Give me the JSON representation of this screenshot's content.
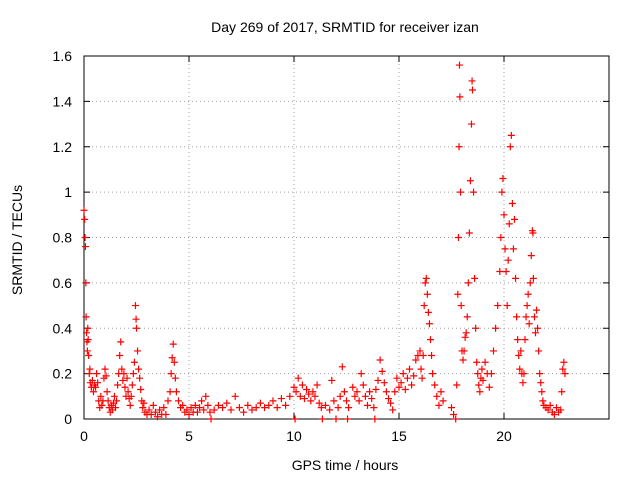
{
  "chart_data": {
    "type": "scatter",
    "title": "Day 269 of 2017, SRMTID for receiver izan",
    "xlabel": "GPS time / hours",
    "ylabel": "SRMTID / TECUs",
    "xlim": [
      0,
      25
    ],
    "ylim": [
      0,
      1.6
    ],
    "x_ticks": [
      0,
      5,
      10,
      15,
      20
    ],
    "x_tick_labels": [
      "0",
      "5",
      "10",
      "15",
      "20"
    ],
    "y_ticks": [
      0,
      0.2,
      0.4,
      0.6,
      0.8,
      1.0,
      1.2,
      1.4,
      1.6
    ],
    "y_tick_labels": [
      "0",
      "0.2",
      "0.4",
      "0.6",
      "0.8",
      "1",
      "1.2",
      "1.4",
      "1.6"
    ],
    "grid": true,
    "marker": "+",
    "color": "#ff0000",
    "series": [
      {
        "name": "SRMTID",
        "points": [
          [
            0.0,
            0.92
          ],
          [
            0.03,
            0.88
          ],
          [
            0.05,
            0.8
          ],
          [
            0.07,
            0.76
          ],
          [
            0.09,
            0.6
          ],
          [
            0.1,
            0.45
          ],
          [
            0.12,
            0.38
          ],
          [
            0.14,
            0.34
          ],
          [
            0.16,
            0.3
          ],
          [
            0.18,
            0.4
          ],
          [
            0.2,
            0.35
          ],
          [
            0.22,
            0.28
          ],
          [
            0.25,
            0.2
          ],
          [
            0.28,
            0.22
          ],
          [
            0.3,
            0.16
          ],
          [
            0.35,
            0.14
          ],
          [
            0.4,
            0.17
          ],
          [
            0.45,
            0.12
          ],
          [
            0.5,
            0.15
          ],
          [
            0.55,
            0.14
          ],
          [
            0.6,
            0.2
          ],
          [
            0.65,
            0.16
          ],
          [
            0.7,
            0.08
          ],
          [
            0.75,
            0.05
          ],
          [
            0.8,
            0.1
          ],
          [
            0.85,
            0.06
          ],
          [
            0.9,
            0.08
          ],
          [
            0.95,
            0.18
          ],
          [
            1.0,
            0.22
          ],
          [
            1.05,
            0.19
          ],
          [
            1.1,
            0.12
          ],
          [
            1.15,
            0.08
          ],
          [
            1.2,
            0.05
          ],
          [
            1.25,
            0.03
          ],
          [
            1.3,
            0.06
          ],
          [
            1.35,
            0.04
          ],
          [
            1.4,
            0.07
          ],
          [
            1.45,
            0.1
          ],
          [
            1.5,
            0.05
          ],
          [
            1.55,
            0.08
          ],
          [
            1.6,
            0.15
          ],
          [
            1.65,
            0.2
          ],
          [
            1.7,
            0.28
          ],
          [
            1.75,
            0.34
          ],
          [
            1.8,
            0.22
          ],
          [
            1.85,
            0.17
          ],
          [
            1.9,
            0.2
          ],
          [
            1.95,
            0.14
          ],
          [
            2.0,
            0.1
          ],
          [
            2.05,
            0.18
          ],
          [
            2.1,
            0.12
          ],
          [
            2.15,
            0.09
          ],
          [
            2.2,
            0.06
          ],
          [
            2.25,
            0.1
          ],
          [
            2.3,
            0.15
          ],
          [
            2.35,
            0.2
          ],
          [
            2.4,
            0.25
          ],
          [
            2.45,
            0.5
          ],
          [
            2.48,
            0.44
          ],
          [
            2.5,
            0.4
          ],
          [
            2.55,
            0.3
          ],
          [
            2.6,
            0.22
          ],
          [
            2.65,
            0.18
          ],
          [
            2.7,
            0.13
          ],
          [
            2.75,
            0.08
          ],
          [
            2.8,
            0.05
          ],
          [
            2.85,
            0.07
          ],
          [
            2.9,
            0.03
          ],
          [
            3.0,
            0.02
          ],
          [
            3.1,
            0.04
          ],
          [
            3.2,
            0.02
          ],
          [
            3.3,
            0.06
          ],
          [
            3.4,
            0.03
          ],
          [
            3.5,
            0.01
          ],
          [
            3.6,
            0.04
          ],
          [
            3.7,
            0.02
          ],
          [
            3.8,
            0.05
          ],
          [
            3.9,
            0.02
          ],
          [
            4.0,
            0.08
          ],
          [
            4.1,
            0.12
          ],
          [
            4.15,
            0.2
          ],
          [
            4.2,
            0.27
          ],
          [
            4.25,
            0.33
          ],
          [
            4.3,
            0.25
          ],
          [
            4.35,
            0.18
          ],
          [
            4.4,
            0.12
          ],
          [
            4.5,
            0.08
          ],
          [
            4.6,
            0.05
          ],
          [
            4.7,
            0.06
          ],
          [
            4.8,
            0.03
          ],
          [
            4.9,
            0.04
          ],
          [
            5.0,
            0.02
          ],
          [
            5.1,
            0.05
          ],
          [
            5.2,
            0.03
          ],
          [
            5.3,
            0.06
          ],
          [
            5.4,
            0.03
          ],
          [
            5.5,
            0.05
          ],
          [
            5.6,
            0.08
          ],
          [
            5.7,
            0.04
          ],
          [
            5.8,
            0.1
          ],
          [
            5.9,
            0.06
          ],
          [
            6.0,
            0.03
          ],
          [
            6.05,
            0.0
          ],
          [
            6.2,
            0.04
          ],
          [
            6.4,
            0.06
          ],
          [
            6.6,
            0.05
          ],
          [
            6.8,
            0.07
          ],
          [
            7.0,
            0.04
          ],
          [
            7.2,
            0.1
          ],
          [
            7.4,
            0.05
          ],
          [
            7.6,
            0.03
          ],
          [
            7.8,
            0.06
          ],
          [
            8.0,
            0.04
          ],
          [
            8.2,
            0.05
          ],
          [
            8.4,
            0.07
          ],
          [
            8.6,
            0.05
          ],
          [
            8.8,
            0.06
          ],
          [
            9.0,
            0.08
          ],
          [
            9.2,
            0.05
          ],
          [
            9.4,
            0.09
          ],
          [
            9.6,
            0.06
          ],
          [
            9.8,
            0.1
          ],
          [
            10.0,
            0.14
          ],
          [
            10.05,
            0.0
          ],
          [
            10.1,
            0.12
          ],
          [
            10.2,
            0.18
          ],
          [
            10.3,
            0.1
          ],
          [
            10.4,
            0.15
          ],
          [
            10.5,
            0.09
          ],
          [
            10.6,
            0.13
          ],
          [
            10.7,
            0.11
          ],
          [
            10.8,
            0.08
          ],
          [
            10.9,
            0.12
          ],
          [
            11.0,
            0.1
          ],
          [
            11.1,
            0.15
          ],
          [
            11.2,
            0.07
          ],
          [
            11.3,
            0.05
          ],
          [
            11.35,
            0.0
          ],
          [
            11.5,
            0.06
          ],
          [
            11.7,
            0.04
          ],
          [
            11.8,
            0.17
          ],
          [
            11.9,
            0.08
          ],
          [
            12.0,
            0.0
          ],
          [
            12.1,
            0.05
          ],
          [
            12.2,
            0.1
          ],
          [
            12.3,
            0.23
          ],
          [
            12.4,
            0.12
          ],
          [
            12.5,
            0.08
          ],
          [
            12.55,
            0.0
          ],
          [
            12.6,
            0.05
          ],
          [
            12.8,
            0.14
          ],
          [
            12.9,
            0.1
          ],
          [
            13.0,
            0.12
          ],
          [
            13.1,
            0.08
          ],
          [
            13.2,
            0.2
          ],
          [
            13.3,
            0.15
          ],
          [
            13.4,
            0.1
          ],
          [
            13.5,
            0.06
          ],
          [
            13.6,
            0.12
          ],
          [
            13.7,
            0.09
          ],
          [
            13.8,
            0.05
          ],
          [
            13.85,
            0.0
          ],
          [
            13.9,
            0.13
          ],
          [
            14.0,
            0.17
          ],
          [
            14.1,
            0.26
          ],
          [
            14.2,
            0.21
          ],
          [
            14.3,
            0.16
          ],
          [
            14.4,
            0.12
          ],
          [
            14.5,
            0.09
          ],
          [
            14.6,
            0.07
          ],
          [
            14.7,
            0.04
          ],
          [
            14.8,
            0.12
          ],
          [
            14.9,
            0.18
          ],
          [
            15.0,
            0.14
          ],
          [
            15.1,
            0.16
          ],
          [
            15.2,
            0.2
          ],
          [
            15.3,
            0.13
          ],
          [
            15.4,
            0.18
          ],
          [
            15.5,
            0.22
          ],
          [
            15.6,
            0.15
          ],
          [
            15.7,
            0.19
          ],
          [
            15.8,
            0.26
          ],
          [
            15.9,
            0.28
          ],
          [
            16.0,
            0.3
          ],
          [
            16.05,
            0.22
          ],
          [
            16.1,
            0.18
          ],
          [
            16.15,
            0.28
          ],
          [
            16.2,
            0.5
          ],
          [
            16.25,
            0.6
          ],
          [
            16.3,
            0.62
          ],
          [
            16.35,
            0.55
          ],
          [
            16.4,
            0.47
          ],
          [
            16.45,
            0.42
          ],
          [
            16.5,
            0.35
          ],
          [
            16.55,
            0.28
          ],
          [
            16.6,
            0.2
          ],
          [
            16.7,
            0.15
          ],
          [
            16.8,
            0.1
          ],
          [
            16.9,
            0.06
          ],
          [
            17.0,
            0.12
          ],
          [
            17.1,
            0.08
          ],
          [
            17.5,
            0.05
          ],
          [
            17.6,
            0.02
          ],
          [
            17.7,
            0.0
          ],
          [
            17.75,
            0.15
          ],
          [
            17.8,
            0.55
          ],
          [
            17.83,
            0.8
          ],
          [
            17.86,
            1.2
          ],
          [
            17.88,
            1.56
          ],
          [
            17.9,
            1.42
          ],
          [
            17.93,
            1.0
          ],
          [
            17.96,
            0.5
          ],
          [
            18.0,
            0.3
          ],
          [
            18.05,
            0.26
          ],
          [
            18.1,
            0.3
          ],
          [
            18.15,
            0.36
          ],
          [
            18.2,
            0.38
          ],
          [
            18.25,
            0.45
          ],
          [
            18.3,
            0.6
          ],
          [
            18.35,
            0.82
          ],
          [
            18.4,
            1.05
          ],
          [
            18.45,
            1.3
          ],
          [
            18.48,
            1.49
          ],
          [
            18.5,
            1.45
          ],
          [
            18.55,
            1.0
          ],
          [
            18.6,
            0.62
          ],
          [
            18.65,
            0.4
          ],
          [
            18.7,
            0.25
          ],
          [
            18.75,
            0.2
          ],
          [
            18.8,
            0.15
          ],
          [
            18.85,
            0.12
          ],
          [
            18.9,
            0.18
          ],
          [
            18.95,
            0.22
          ],
          [
            19.0,
            0.17
          ],
          [
            19.1,
            0.25
          ],
          [
            19.2,
            0.2
          ],
          [
            19.3,
            0.14
          ],
          [
            19.4,
            0.2
          ],
          [
            19.5,
            0.3
          ],
          [
            19.6,
            0.4
          ],
          [
            19.7,
            0.5
          ],
          [
            19.8,
            0.65
          ],
          [
            19.85,
            0.8
          ],
          [
            19.9,
            1.0
          ],
          [
            19.95,
            1.06
          ],
          [
            20.0,
            0.9
          ],
          [
            20.05,
            0.75
          ],
          [
            20.1,
            0.65
          ],
          [
            20.15,
            0.5
          ],
          [
            20.2,
            0.7
          ],
          [
            20.25,
            0.86
          ],
          [
            20.3,
            1.2
          ],
          [
            20.35,
            1.25
          ],
          [
            20.4,
            0.95
          ],
          [
            20.45,
            0.75
          ],
          [
            20.5,
            0.88
          ],
          [
            20.55,
            0.62
          ],
          [
            20.6,
            0.45
          ],
          [
            20.65,
            0.35
          ],
          [
            20.7,
            0.28
          ],
          [
            20.75,
            0.22
          ],
          [
            20.8,
            0.3
          ],
          [
            20.85,
            0.2
          ],
          [
            20.9,
            0.16
          ],
          [
            20.95,
            0.2
          ],
          [
            21.0,
            0.35
          ],
          [
            21.05,
            0.45
          ],
          [
            21.1,
            0.5
          ],
          [
            21.15,
            0.55
          ],
          [
            21.2,
            0.42
          ],
          [
            21.25,
            0.6
          ],
          [
            21.3,
            0.72
          ],
          [
            21.35,
            0.83
          ],
          [
            21.38,
            0.82
          ],
          [
            21.4,
            0.62
          ],
          [
            21.45,
            0.45
          ],
          [
            21.5,
            0.38
          ],
          [
            21.55,
            0.48
          ],
          [
            21.6,
            0.4
          ],
          [
            21.65,
            0.3
          ],
          [
            21.7,
            0.2
          ],
          [
            21.75,
            0.16
          ],
          [
            21.8,
            0.12
          ],
          [
            21.85,
            0.08
          ],
          [
            21.9,
            0.06
          ],
          [
            22.0,
            0.05
          ],
          [
            22.1,
            0.04
          ],
          [
            22.2,
            0.06
          ],
          [
            22.3,
            0.03
          ],
          [
            22.4,
            0.02
          ],
          [
            22.5,
            0.05
          ],
          [
            22.6,
            0.03
          ],
          [
            22.7,
            0.04
          ],
          [
            22.75,
            0.12
          ],
          [
            22.8,
            0.22
          ],
          [
            22.85,
            0.25
          ],
          [
            22.9,
            0.2
          ]
        ]
      }
    ]
  }
}
